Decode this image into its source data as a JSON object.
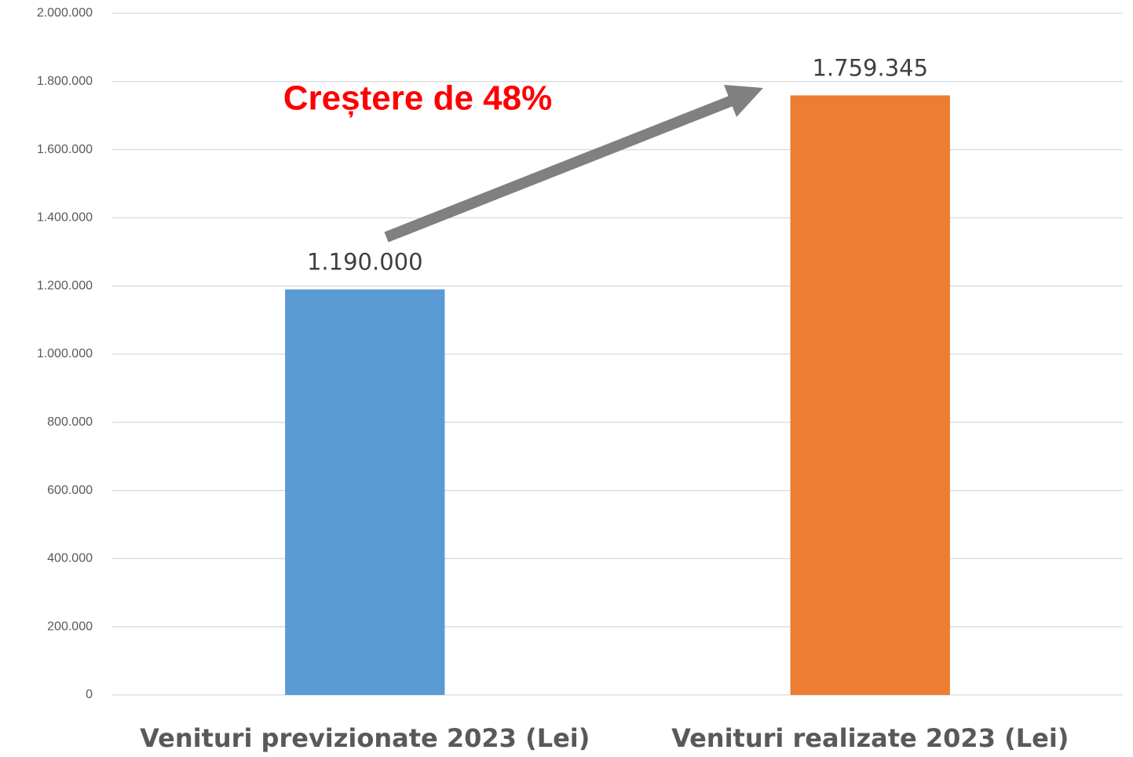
{
  "chart_data": {
    "type": "bar",
    "categories": [
      "Venituri previzionate 2023 (Lei)",
      "Venituri realizate 2023 (Lei)"
    ],
    "values": [
      1190000,
      1759345
    ],
    "value_labels": [
      "1.190.000",
      "1.759.345"
    ],
    "colors": [
      "#5b9bd5",
      "#ed7d31"
    ],
    "ylim": [
      0,
      2000000
    ],
    "yticks": [
      0,
      {
        "value": 200000,
        "label": "200.000"
      },
      {
        "value": 400000,
        "label": "400.000"
      },
      {
        "value": 600000,
        "label": "600.000"
      },
      {
        "value": 800000,
        "label": "800.000"
      },
      {
        "value": 1000000,
        "label": "1.000.000"
      },
      {
        "value": 1200000,
        "label": "1.200.000"
      },
      {
        "value": 1400000,
        "label": "1.400.000"
      },
      {
        "value": 1600000,
        "label": "1.600.000"
      },
      {
        "value": 1800000,
        "label": "1.800.000"
      },
      {
        "value": 2000000,
        "label": "2.000.000"
      }
    ],
    "grid": true,
    "annotation": "Creștere de 48%"
  }
}
